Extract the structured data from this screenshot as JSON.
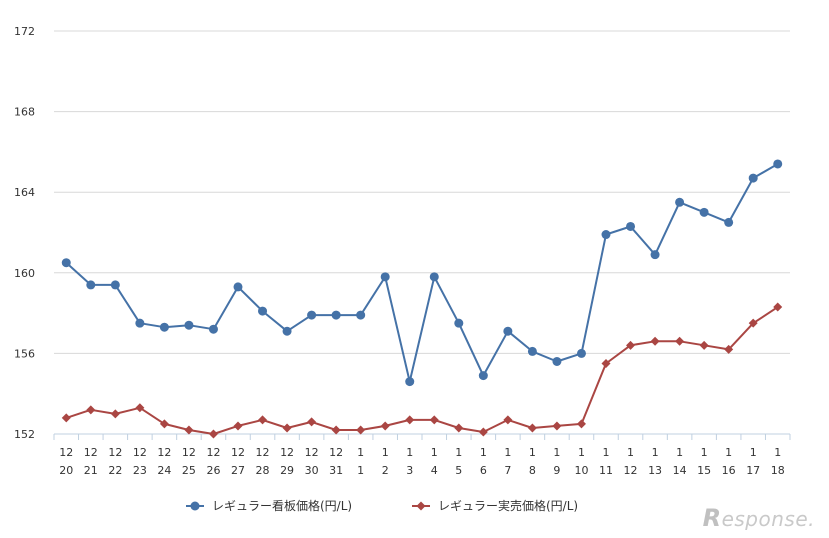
{
  "chart_data": {
    "type": "line",
    "x_top": [
      "12",
      "12",
      "12",
      "12",
      "12",
      "12",
      "12",
      "12",
      "12",
      "12",
      "12",
      "12",
      "1",
      "1",
      "1",
      "1",
      "1",
      "1",
      "1",
      "1",
      "1",
      "1",
      "1",
      "1",
      "1",
      "1",
      "1",
      "1",
      "1",
      "1"
    ],
    "x_bottom": [
      "20",
      "21",
      "22",
      "23",
      "24",
      "25",
      "26",
      "27",
      "28",
      "29",
      "30",
      "31",
      "1",
      "2",
      "3",
      "4",
      "5",
      "6",
      "7",
      "8",
      "9",
      "10",
      "11",
      "12",
      "13",
      "14",
      "15",
      "16",
      "17",
      "18"
    ],
    "ylim": [
      152,
      172
    ],
    "yticks": [
      "152",
      "156",
      "160",
      "164",
      "168",
      "172"
    ],
    "grid": true,
    "legend_position": "bottom",
    "series": [
      {
        "name": "レギュラー看板価格(円/L)",
        "color": "#4572A7",
        "marker": "circle",
        "values": [
          160.5,
          159.4,
          159.4,
          157.5,
          157.3,
          157.4,
          157.2,
          159.3,
          158.1,
          157.1,
          157.9,
          157.9,
          157.9,
          159.8,
          154.6,
          159.8,
          157.5,
          154.9,
          157.1,
          156.1,
          155.6,
          156.0,
          161.9,
          162.3,
          160.9,
          163.5,
          163.0,
          162.5,
          164.7,
          165.4
        ]
      },
      {
        "name": "レギュラー実売価格(円/L)",
        "color": "#AA4643",
        "marker": "diamond",
        "values": [
          152.8,
          153.2,
          153.0,
          153.3,
          152.5,
          152.2,
          152.0,
          152.4,
          152.7,
          152.3,
          152.6,
          152.2,
          152.2,
          152.4,
          152.7,
          152.7,
          152.3,
          152.1,
          152.7,
          152.3,
          152.4,
          152.5,
          155.5,
          156.4,
          156.6,
          156.6,
          156.4,
          156.2,
          157.5,
          158.3
        ]
      }
    ]
  },
  "watermark": {
    "letter": "R",
    "text": "esponse."
  }
}
